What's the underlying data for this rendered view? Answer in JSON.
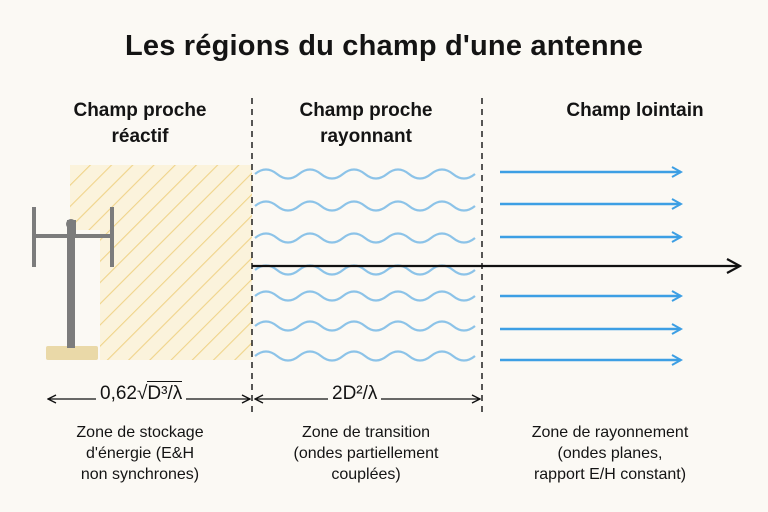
{
  "title": "Les régions du champ d'une antenne",
  "regions": [
    {
      "heading_lines": [
        "Champ proche",
        "réactif"
      ],
      "formula_prefix": "0,62",
      "formula_inner": "D³/λ",
      "description_lines": [
        "Zone de stockage",
        "d'énergie (E&H",
        "non synchrones)"
      ]
    },
    {
      "heading_lines": [
        "Champ proche",
        "rayonnant"
      ],
      "formula": "2D²/λ",
      "description_lines": [
        "Zone de transition",
        "(ondes partiellement",
        "couplées)"
      ]
    },
    {
      "heading_lines": [
        "Champ lointain"
      ],
      "description_lines": [
        "Zone de rayonnement",
        "(ondes planes,",
        "rapport E/H constant)"
      ]
    }
  ],
  "colors": {
    "hatch_fill": "#fbf3dc",
    "hatch_line": "#f0d48a",
    "wave": "#8cc3e8",
    "arrow_blue": "#3d9fe4",
    "antenna": "#7c7c7c",
    "antenna_base": "#ead9a8",
    "axis": "#111111"
  }
}
